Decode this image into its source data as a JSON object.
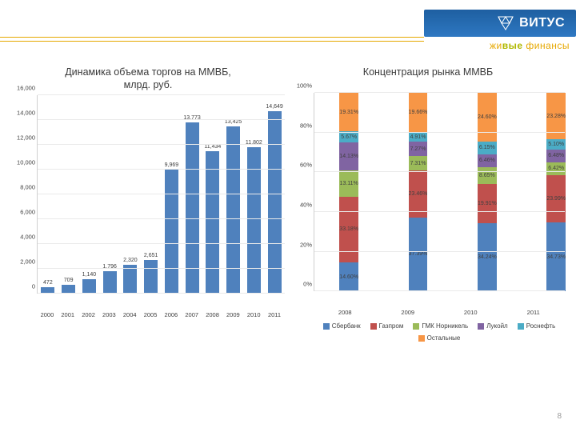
{
  "page_number": "8",
  "header": {
    "brand_text": "ВИТУС",
    "tagline_parts": [
      "жи",
      "вые",
      " финансы"
    ]
  },
  "bar_chart": {
    "type": "bar",
    "title_l1": "Динамика объема торгов на ММВБ,",
    "title_l2": "млрд. руб.",
    "categories": [
      "2000",
      "2001",
      "2002",
      "2003",
      "2004",
      "2005",
      "2006",
      "2007",
      "2008",
      "2009",
      "2010",
      "2011"
    ],
    "values": [
      472,
      709,
      1140,
      1796,
      2320,
      2651,
      9969,
      13773,
      11434,
      13425,
      11802,
      14649
    ],
    "value_labels": [
      "472",
      "709",
      "1,140",
      "1,796",
      "2,320",
      "2,651",
      "9,969",
      "13,773",
      "11,434",
      "13,425",
      "11,802",
      "14,649"
    ],
    "bar_color": "#4f81bd",
    "ylim": [
      0,
      16000
    ],
    "y_ticks": [
      0,
      2000,
      4000,
      6000,
      8000,
      10000,
      12000,
      14000,
      16000
    ],
    "y_tick_labels": [
      "0",
      "2,000",
      "4,000",
      "6,000",
      "8,000",
      "10,000",
      "12,000",
      "14,000",
      "16,000"
    ],
    "grid_color": "#eaeaea",
    "label_fontsize": 7.5
  },
  "stacked_chart": {
    "type": "stacked_bar_100",
    "title": "Концентрация рынка ММВБ",
    "categories": [
      "2008",
      "2009",
      "2010",
      "2011"
    ],
    "series": [
      {
        "name": "Сбербанк",
        "color": "#4f81bd"
      },
      {
        "name": "Газпром",
        "color": "#c0504d"
      },
      {
        "name": "ГМК Норникель",
        "color": "#9bbb59"
      },
      {
        "name": "Лукойл",
        "color": "#8064a2"
      },
      {
        "name": "Роснефть",
        "color": "#4bacc6"
      },
      {
        "name": "Остальные",
        "color": "#f79646"
      }
    ],
    "ylim": [
      0,
      100
    ],
    "y_ticks": [
      0,
      20,
      40,
      60,
      80,
      100
    ],
    "y_tick_labels": [
      "0%",
      "20%",
      "40%",
      "60%",
      "80%",
      "100%"
    ],
    "data": [
      {
        "year": "2008",
        "segments": [
          {
            "value": 14.6,
            "label": "14.60%"
          },
          {
            "value": 33.18,
            "label": "33.18%"
          },
          {
            "value": 13.11,
            "label": "13.11%"
          },
          {
            "value": 14.13,
            "label": "14.13%"
          },
          {
            "value": 5.67,
            "label": "5.67%"
          },
          {
            "value": 19.31,
            "label": "19.31%"
          }
        ]
      },
      {
        "year": "2009",
        "segments": [
          {
            "value": 37.39,
            "label": "37.39%"
          },
          {
            "value": 23.46,
            "label": "23.46%"
          },
          {
            "value": 7.31,
            "label": "7.31%"
          },
          {
            "value": 7.27,
            "label": "7.27%"
          },
          {
            "value": 4.91,
            "label": "4.91%"
          },
          {
            "value": 19.66,
            "label": "19.66%"
          }
        ]
      },
      {
        "year": "2010",
        "segments": [
          {
            "value": 34.24,
            "label": "34.24%"
          },
          {
            "value": 19.91,
            "label": "19.91%"
          },
          {
            "value": 8.65,
            "label": "8.65%"
          },
          {
            "value": 6.46,
            "label": "6.46%"
          },
          {
            "value": 6.15,
            "label": "6.15%"
          },
          {
            "value": 24.6,
            "label": "24.60%"
          }
        ]
      },
      {
        "year": "2011",
        "segments": [
          {
            "value": 34.73,
            "label": "34.73%"
          },
          {
            "value": 23.99,
            "label": "23.99%"
          },
          {
            "value": 6.42,
            "label": "6.42%"
          },
          {
            "value": 6.48,
            "label": "6.48%"
          },
          {
            "value": 5.1,
            "label": "5.10%"
          },
          {
            "value": 23.28,
            "label": "23.28%"
          }
        ]
      }
    ],
    "grid_color": "#eaeaea",
    "label_fontsize": 7.5
  }
}
